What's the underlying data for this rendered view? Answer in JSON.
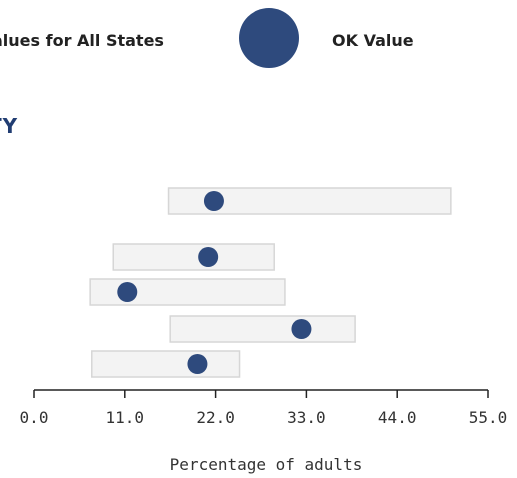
{
  "legend": {
    "range_label": "alues for All States",
    "state_label": "OK Value"
  },
  "section_heading": "TY",
  "chart_data": {
    "type": "range-dot",
    "xlabel": "Percentage of adults",
    "xlim": [
      0,
      55
    ],
    "ticks": [
      0,
      11,
      22,
      33,
      44,
      55
    ],
    "tick_labels": [
      "0.0",
      "11.0",
      "22.0",
      "33.0",
      "44.0",
      "55.0"
    ],
    "rows": [
      {
        "range": [
          16.3,
          50.5
        ],
        "value": 21.8
      },
      {
        "range": [
          9.6,
          29.1
        ],
        "value": 21.1
      },
      {
        "range": [
          6.8,
          30.4
        ],
        "value": 11.3
      },
      {
        "range": [
          16.5,
          38.9
        ],
        "value": 32.4
      },
      {
        "range": [
          7.0,
          24.9
        ],
        "value": 19.8
      }
    ],
    "colors": {
      "range_fill": "#f3f3f3",
      "range_stroke": "#d6d6d6",
      "dot": "#2e4a7d",
      "axis": "#222222",
      "heading": "#213d72"
    }
  }
}
